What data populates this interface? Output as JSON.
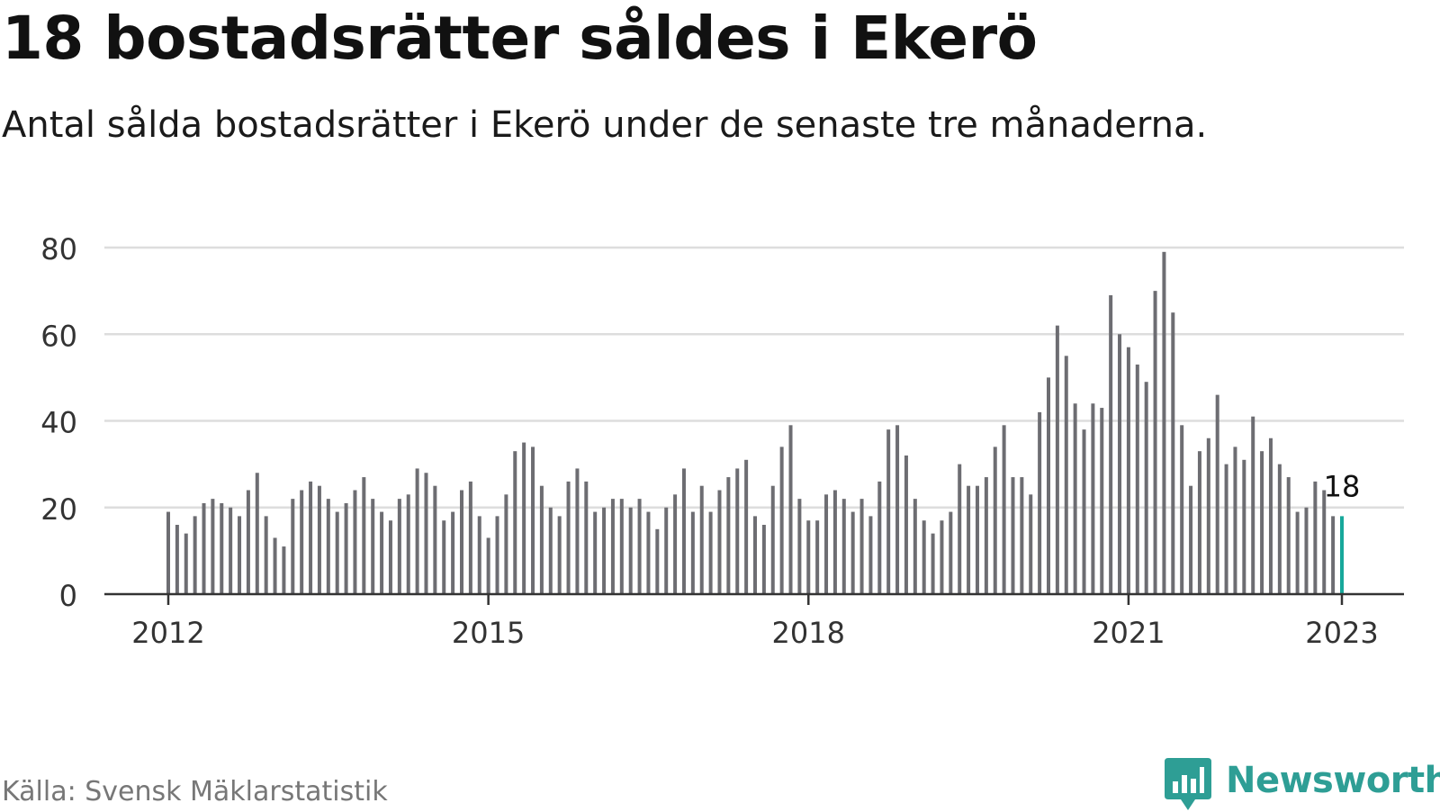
{
  "title": "18 bostadsrätter såldes i Ekerö",
  "subtitle": "Antal sålda bostadsrätter i Ekerö under de senaste tre månaderna.",
  "source": "Källa: Svensk Mäklarstatistik",
  "brand": {
    "name": "Newsworthy",
    "icon": "bar-chart-speech-bubble-icon",
    "color": "#2e9e95"
  },
  "colors": {
    "bar": "#6d6d72",
    "highlight": "#17a89b",
    "grid": "#dddddd",
    "axis": "#333333"
  },
  "chart_data": {
    "type": "bar",
    "title": "18 bostadsrätter såldes i Ekerö",
    "xlabel": "",
    "ylabel": "",
    "ylim": [
      0,
      80
    ],
    "yticks": [
      0,
      20,
      40,
      60,
      80
    ],
    "xticks": [
      "2012",
      "2015",
      "2018",
      "2021",
      "2023"
    ],
    "grid": true,
    "start_month": "2012-01",
    "end_month": "2023-01",
    "highlight": {
      "month": "2023-01",
      "value": 18,
      "label": "18"
    },
    "values": [
      19,
      16,
      14,
      18,
      21,
      22,
      21,
      20,
      18,
      24,
      28,
      18,
      13,
      11,
      22,
      24,
      26,
      25,
      22,
      19,
      21,
      24,
      27,
      22,
      19,
      17,
      22,
      23,
      29,
      28,
      25,
      17,
      19,
      24,
      26,
      18,
      13,
      18,
      23,
      33,
      35,
      34,
      25,
      20,
      18,
      26,
      29,
      26,
      19,
      20,
      22,
      22,
      20,
      22,
      19,
      15,
      20,
      23,
      29,
      19,
      25,
      19,
      24,
      27,
      29,
      31,
      18,
      16,
      25,
      34,
      39,
      22,
      17,
      17,
      23,
      24,
      22,
      19,
      22,
      18,
      26,
      38,
      39,
      32,
      22,
      17,
      14,
      17,
      19,
      30,
      25,
      25,
      27,
      34,
      39,
      27,
      27,
      23,
      42,
      50,
      62,
      55,
      44,
      38,
      44,
      43,
      69,
      60,
      57,
      53,
      49,
      70,
      79,
      65,
      39,
      25,
      33,
      36,
      46,
      30,
      34,
      31,
      41,
      33,
      36,
      30,
      27,
      19,
      20,
      26,
      24,
      18,
      18
    ]
  }
}
